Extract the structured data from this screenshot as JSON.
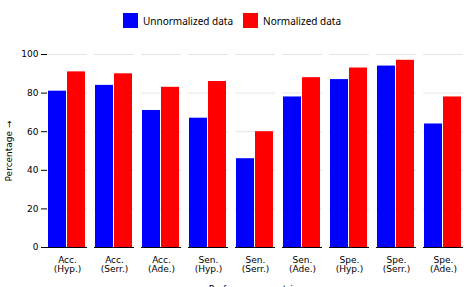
{
  "chart_data": {
    "type": "bar",
    "categories": [
      "Acc.\n(Hyp.)",
      "Acc.\n(Serr.)",
      "Acc.\n(Ade.)",
      "Sen.\n(Hyp.)",
      "Sen.\n(Serr.)",
      "Sen.\n(Ade.)",
      "Spe.\n(Hyp.)",
      "Spe.\n(Serr.)",
      "Spe.\n(Ade.)"
    ],
    "series": [
      {
        "name": "Unnormalized data",
        "color": "#0000ff",
        "values": [
          81,
          84,
          71,
          67,
          46,
          78,
          87,
          94,
          64
        ]
      },
      {
        "name": "Normalized data",
        "color": "#ff0000",
        "values": [
          91,
          90,
          83,
          86,
          60,
          88,
          93,
          97,
          78
        ]
      }
    ],
    "xlabel": "Performance metrics",
    "ylabel": "Percentage",
    "ylim": [
      0,
      100
    ],
    "yticks": [
      0,
      20,
      40,
      60,
      80,
      100
    ],
    "grid": true,
    "legend": "top"
  }
}
